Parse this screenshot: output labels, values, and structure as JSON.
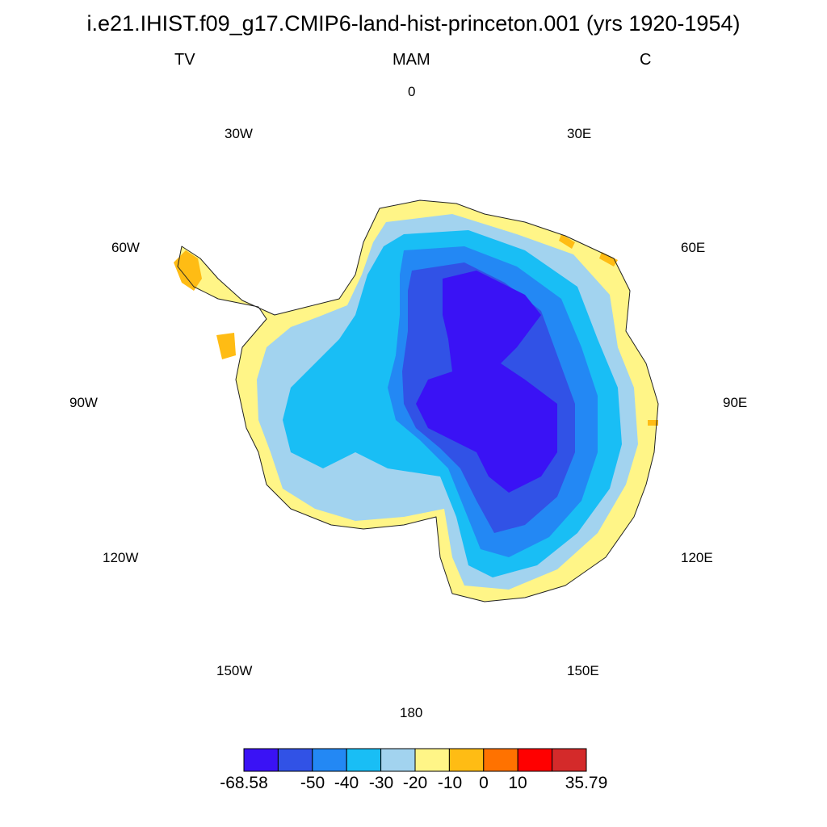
{
  "title": "i.e21.IHIST.f09_g17.CMIP6-land-hist-princeton.001 (yrs 1920-1954)",
  "left_label": "TV",
  "center_label": "MAM",
  "right_label": "C",
  "longitude_labels": {
    "lon_0": "0",
    "lon_30e": "30E",
    "lon_60e": "60E",
    "lon_90e": "90E",
    "lon_120e": "120E",
    "lon_150e": "150E",
    "lon_180": "180",
    "lon_150w": "150W",
    "lon_120w": "120W",
    "lon_90w": "90W",
    "lon_60w": "60W",
    "lon_30w": "30W"
  },
  "colorbar": {
    "colors": [
      "#3a12f5",
      "#3152e6",
      "#2388f4",
      "#19bef5",
      "#a2d3ef",
      "#fff587",
      "#ffbc14",
      "#ff7200",
      "#ff0000",
      "#d42a2a"
    ],
    "labels": [
      "-68.58",
      "-50",
      "-40",
      "-30",
      "-20",
      "-10",
      "0",
      "10",
      "35.79"
    ],
    "boundaries": [
      -68.58,
      -60,
      -50,
      -40,
      -30,
      -20,
      -10,
      0,
      10,
      20,
      35.79
    ]
  }
}
